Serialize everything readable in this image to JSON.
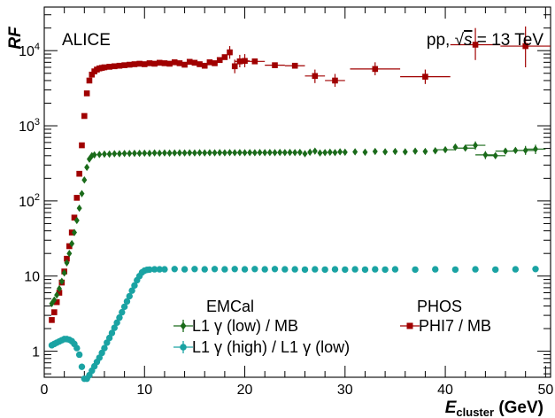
{
  "chart_data": {
    "type": "scatter",
    "title": "",
    "xlabel": "E_cluster (GeV)",
    "xlabel_main": "E",
    "xlabel_sub": "cluster",
    "xlabel_unit": " (GeV)",
    "ylabel": "RF",
    "xlim": [
      0,
      50.5
    ],
    "ylim": [
      0.45,
      38000
    ],
    "yscale": "log",
    "grid": false,
    "x_ticks": [
      0,
      10,
      20,
      30,
      40,
      50
    ],
    "x_tick_labels": [
      "0",
      "10",
      "20",
      "30",
      "40",
      "50"
    ],
    "y_ticks": [
      {
        "value": 1,
        "base": "1",
        "exp": ""
      },
      {
        "value": 10,
        "base": "10",
        "exp": ""
      },
      {
        "value": 100,
        "base": "10",
        "exp": "2"
      },
      {
        "value": 1000,
        "base": "10",
        "exp": "3"
      },
      {
        "value": 10000,
        "base": "10",
        "exp": "4"
      }
    ],
    "annotations": {
      "experiment": "ALICE",
      "system_prefix": "pp, ",
      "system_sqrt": "√",
      "system_s": "s",
      "system_suffix": " = 13 TeV"
    },
    "legend": {
      "placement": "bottom-center",
      "groups": [
        {
          "header": "EMCal",
          "entries": [
            "L1 γ (low) / MB",
            "L1 γ (high) / L1 γ (low)"
          ]
        },
        {
          "header": "PHOS",
          "entries": [
            "PHI7 / MB"
          ]
        }
      ]
    },
    "series": [
      {
        "name": "PHI7 / MB",
        "color": "#a00000",
        "marker": "square",
        "points": [
          [
            0.75,
            2.6
          ],
          [
            1.0,
            3.3
          ],
          [
            1.25,
            4.5
          ],
          [
            1.5,
            6.0
          ],
          [
            1.75,
            8.2
          ],
          [
            2.0,
            11.5
          ],
          [
            2.25,
            17
          ],
          [
            2.5,
            25
          ],
          [
            2.75,
            38
          ],
          [
            3.0,
            60
          ],
          [
            3.25,
            110
          ],
          [
            3.5,
            230
          ],
          [
            3.75,
            550
          ],
          [
            4.0,
            1350
          ],
          [
            4.25,
            2700
          ],
          [
            4.5,
            4000
          ],
          [
            4.75,
            4800
          ],
          [
            5.0,
            5300
          ],
          [
            5.25,
            5600
          ],
          [
            5.5,
            5800
          ],
          [
            5.75,
            5900
          ],
          [
            6.0,
            6000
          ],
          [
            6.5,
            6100
          ],
          [
            7.0,
            6200
          ],
          [
            7.5,
            6300
          ],
          [
            8.0,
            6400
          ],
          [
            8.5,
            6500
          ],
          [
            9.0,
            6600
          ],
          [
            9.5,
            6700
          ],
          [
            10.0,
            6600
          ],
          [
            10.5,
            6800
          ],
          [
            11.0,
            6700
          ],
          [
            11.5,
            6900
          ],
          [
            12.0,
            6800
          ],
          [
            12.5,
            6700
          ],
          [
            13.0,
            7000
          ],
          [
            13.5,
            6800
          ],
          [
            14.0,
            6500
          ],
          [
            14.5,
            7100
          ],
          [
            15.0,
            6900
          ],
          [
            15.5,
            6600
          ],
          [
            16.0,
            6300
          ],
          [
            16.5,
            7000
          ],
          [
            17.0,
            6800
          ],
          [
            17.5,
            7500
          ],
          [
            18.0,
            8200
          ],
          [
            18.5,
            9500
          ],
          [
            19.0,
            6200
          ],
          [
            19.5,
            7200
          ],
          [
            20.0,
            7300
          ],
          [
            21.0,
            7200
          ],
          [
            23.0,
            6400
          ],
          [
            25.0,
            6300
          ],
          [
            27.0,
            4600
          ],
          [
            29.0,
            4000
          ],
          [
            33.0,
            5700
          ],
          [
            38.0,
            4500
          ],
          [
            43.0,
            12000
          ],
          [
            48.0,
            11500
          ]
        ],
        "xerr": [
          [
            19.5,
            0.5
          ],
          [
            20.0,
            0.5
          ],
          [
            21.0,
            1.0
          ],
          [
            23.0,
            1.0
          ],
          [
            25.0,
            1.0
          ],
          [
            27.0,
            1.0
          ],
          [
            29.0,
            1.0
          ],
          [
            33.0,
            2.5
          ],
          [
            38.0,
            2.5
          ],
          [
            43.0,
            2.5
          ],
          [
            48.0,
            2.5
          ]
        ],
        "yerr": [
          [
            18.5,
            7800,
            11500
          ],
          [
            19.0,
            5000,
            7600
          ],
          [
            19.5,
            6000,
            8800
          ],
          [
            20.0,
            6000,
            9000
          ],
          [
            27.0,
            3700,
            5600
          ],
          [
            29.0,
            3300,
            4900
          ],
          [
            33.0,
            4700,
            7000
          ],
          [
            38.0,
            3600,
            5600
          ],
          [
            43.0,
            7500,
            20000
          ],
          [
            48.0,
            6000,
            21000
          ]
        ]
      },
      {
        "name": "L1 γ (low) / MB",
        "color": "#1a6b1a",
        "marker": "diamond",
        "points": [
          [
            0.75,
            4.3
          ],
          [
            1.0,
            4.8
          ],
          [
            1.25,
            5.6
          ],
          [
            1.5,
            6.8
          ],
          [
            1.75,
            8.5
          ],
          [
            2.0,
            11
          ],
          [
            2.25,
            15
          ],
          [
            2.5,
            20
          ],
          [
            2.75,
            27
          ],
          [
            3.0,
            38
          ],
          [
            3.25,
            55
          ],
          [
            3.5,
            80
          ],
          [
            3.75,
            125
          ],
          [
            4.0,
            190
          ],
          [
            4.25,
            280
          ],
          [
            4.5,
            360
          ],
          [
            4.75,
            400
          ],
          [
            5.0,
            410
          ],
          [
            5.5,
            415
          ],
          [
            6.0,
            420
          ],
          [
            6.5,
            420
          ],
          [
            7.0,
            425
          ],
          [
            7.5,
            425
          ],
          [
            8.0,
            428
          ],
          [
            8.5,
            428
          ],
          [
            9.0,
            430
          ],
          [
            9.5,
            430
          ],
          [
            10.0,
            432
          ],
          [
            10.5,
            430
          ],
          [
            11.0,
            435
          ],
          [
            11.5,
            432
          ],
          [
            12.0,
            435
          ],
          [
            12.5,
            433
          ],
          [
            13.0,
            435
          ],
          [
            13.5,
            436
          ],
          [
            14.0,
            435
          ],
          [
            14.5,
            437
          ],
          [
            15.0,
            435
          ],
          [
            15.5,
            438
          ],
          [
            16.0,
            436
          ],
          [
            16.5,
            438
          ],
          [
            17.0,
            437
          ],
          [
            17.5,
            439
          ],
          [
            18.0,
            437
          ],
          [
            18.5,
            440
          ],
          [
            19.0,
            438
          ],
          [
            19.5,
            440
          ],
          [
            20.0,
            438
          ],
          [
            20.5,
            440
          ],
          [
            21.0,
            438
          ],
          [
            21.5,
            441
          ],
          [
            22.0,
            439
          ],
          [
            22.5,
            441
          ],
          [
            23.0,
            439
          ],
          [
            23.5,
            442
          ],
          [
            24.0,
            440
          ],
          [
            24.5,
            442
          ],
          [
            25.0,
            440
          ],
          [
            25.5,
            443
          ],
          [
            26.0,
            425
          ],
          [
            26.5,
            445
          ],
          [
            27.0,
            460
          ],
          [
            27.5,
            435
          ],
          [
            28.0,
            440
          ],
          [
            28.5,
            445
          ],
          [
            29.0,
            440
          ],
          [
            29.5,
            450
          ],
          [
            30.0,
            445
          ],
          [
            31.0,
            450
          ],
          [
            32.0,
            445
          ],
          [
            33.0,
            455
          ],
          [
            34.0,
            450
          ],
          [
            35.0,
            455
          ],
          [
            36.0,
            450
          ],
          [
            37.0,
            460
          ],
          [
            38.0,
            455
          ],
          [
            39.0,
            465
          ],
          [
            40.0,
            480
          ],
          [
            41.0,
            520
          ],
          [
            42.0,
            505
          ],
          [
            43.0,
            550
          ],
          [
            44.0,
            410
          ],
          [
            45.0,
            400
          ],
          [
            46.0,
            460
          ],
          [
            47.0,
            470
          ],
          [
            48.0,
            470
          ],
          [
            49.0,
            490
          ]
        ],
        "xerr": [
          [
            40.0,
            1.0
          ],
          [
            42.0,
            1.0
          ],
          [
            43.0,
            1.0
          ],
          [
            44.0,
            1.0
          ],
          [
            45.0,
            1.0
          ],
          [
            46.0,
            1.0
          ],
          [
            48.0,
            1.0
          ],
          [
            49.0,
            1.0
          ]
        ],
        "yerr": [
          [
            43.0,
            480,
            620
          ],
          [
            44.0,
            360,
            460
          ],
          [
            48.0,
            410,
            540
          ],
          [
            49.0,
            420,
            560
          ]
        ]
      },
      {
        "name": "L1 γ (high) / L1 γ (low)",
        "color": "#1aa3a3",
        "marker": "circle",
        "points": [
          [
            0.75,
            1.2
          ],
          [
            1.0,
            1.25
          ],
          [
            1.25,
            1.3
          ],
          [
            1.5,
            1.35
          ],
          [
            1.75,
            1.4
          ],
          [
            2.0,
            1.45
          ],
          [
            2.25,
            1.45
          ],
          [
            2.5,
            1.42
          ],
          [
            2.75,
            1.36
          ],
          [
            3.0,
            1.25
          ],
          [
            3.25,
            1.1
          ],
          [
            3.5,
            0.9
          ],
          [
            3.75,
            0.62
          ],
          [
            4.0,
            0.43
          ],
          [
            4.25,
            0.43
          ],
          [
            4.5,
            0.48
          ],
          [
            4.75,
            0.55
          ],
          [
            5.0,
            0.63
          ],
          [
            5.25,
            0.72
          ],
          [
            5.5,
            0.82
          ],
          [
            5.75,
            0.95
          ],
          [
            6.0,
            1.1
          ],
          [
            6.25,
            1.3
          ],
          [
            6.5,
            1.5
          ],
          [
            6.75,
            1.75
          ],
          [
            7.0,
            2.05
          ],
          [
            7.25,
            2.4
          ],
          [
            7.5,
            2.8
          ],
          [
            7.75,
            3.3
          ],
          [
            8.0,
            3.9
          ],
          [
            8.25,
            4.6
          ],
          [
            8.5,
            5.4
          ],
          [
            8.75,
            6.4
          ],
          [
            9.0,
            7.5
          ],
          [
            9.25,
            8.8
          ],
          [
            9.5,
            10.0
          ],
          [
            9.75,
            11.2
          ],
          [
            10.0,
            11.8
          ],
          [
            10.25,
            12.1
          ],
          [
            10.5,
            12.2
          ],
          [
            11.0,
            12.3
          ],
          [
            11.5,
            12.3
          ],
          [
            12.0,
            12.3
          ],
          [
            13.0,
            12.4
          ],
          [
            14.0,
            12.3
          ],
          [
            15.0,
            12.4
          ],
          [
            16.0,
            12.3
          ],
          [
            17.0,
            12.4
          ],
          [
            18.0,
            12.3
          ],
          [
            19.0,
            12.4
          ],
          [
            20.0,
            12.3
          ],
          [
            21.0,
            12.4
          ],
          [
            22.0,
            12.3
          ],
          [
            23.0,
            12.4
          ],
          [
            24.0,
            12.3
          ],
          [
            25.0,
            12.3
          ],
          [
            26.0,
            12.2
          ],
          [
            27.0,
            12.3
          ],
          [
            28.0,
            12.2
          ],
          [
            29.0,
            12.3
          ],
          [
            30.0,
            12.2
          ],
          [
            31.0,
            12.3
          ],
          [
            32.0,
            12.2
          ],
          [
            33.0,
            12.3
          ],
          [
            34.0,
            12.2
          ],
          [
            35.0,
            12.3
          ],
          [
            37.0,
            12.2
          ],
          [
            39.0,
            12.3
          ],
          [
            41.0,
            12.2
          ],
          [
            43.0,
            12.3
          ],
          [
            45.0,
            12.2
          ],
          [
            47.0,
            12.3
          ],
          [
            49.0,
            12.4
          ]
        ],
        "xerr": [],
        "yerr": []
      }
    ]
  }
}
